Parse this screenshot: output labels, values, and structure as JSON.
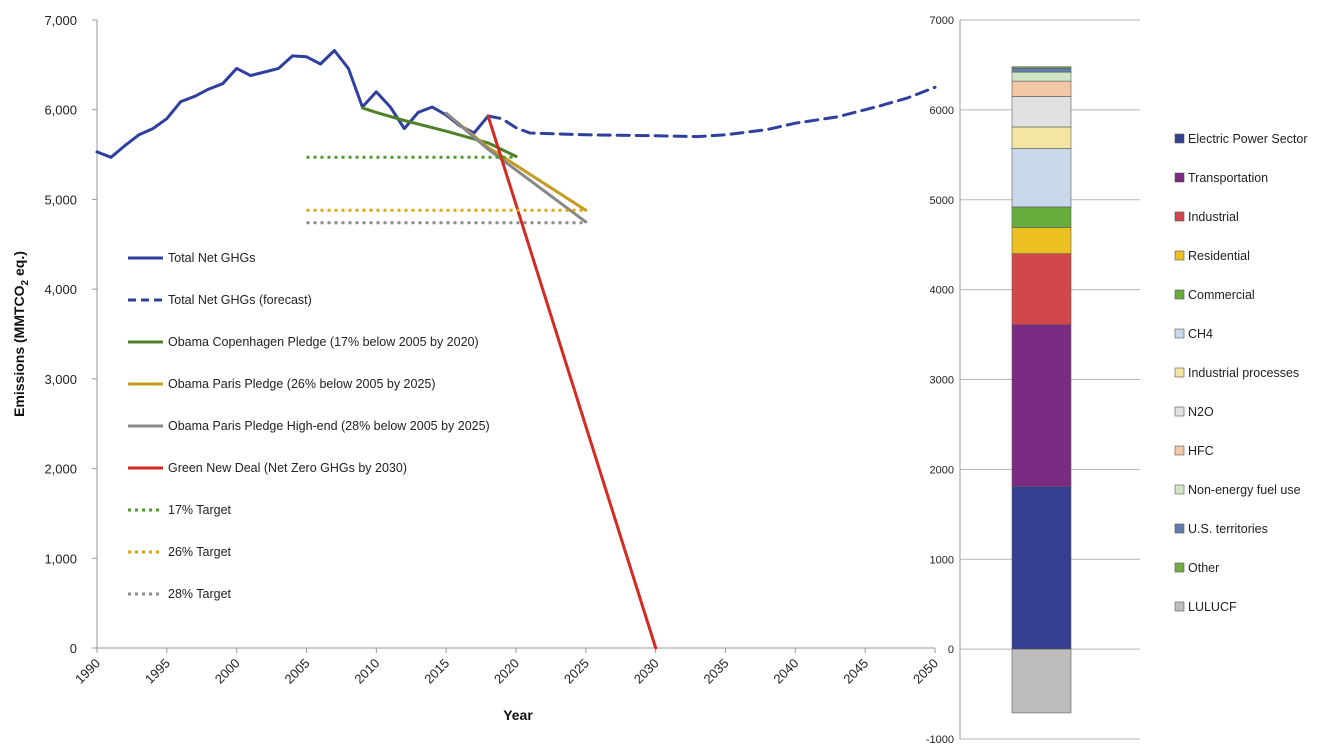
{
  "chart_data": [
    {
      "type": "line",
      "xlabel": "Year",
      "ylabel": "Emissions (MMTCO",
      "ylabel_sub": "2",
      "ylabel_tail": " eq.)",
      "xlim": [
        1990,
        2050
      ],
      "ylim": [
        0,
        7000
      ],
      "xticks": [
        {
          "value": 1990,
          "label": "1990"
        },
        {
          "value": 1995,
          "label": "1995"
        },
        {
          "value": 2000,
          "label": "2000"
        },
        {
          "value": 2005,
          "label": "2005"
        },
        {
          "value": 2010,
          "label": "2010"
        },
        {
          "value": 2015,
          "label": "2015"
        },
        {
          "value": 2020,
          "label": "2020"
        },
        {
          "value": 2025,
          "label": "2025"
        },
        {
          "value": 2030,
          "label": "2030"
        },
        {
          "value": 2035,
          "label": "2035"
        },
        {
          "value": 2040,
          "label": "2040"
        },
        {
          "value": 2045,
          "label": "2045"
        },
        {
          "value": 2050,
          "label": "2050"
        }
      ],
      "yticks": [
        {
          "value": 0,
          "label": "0"
        },
        {
          "value": 1000,
          "label": "1,000"
        },
        {
          "value": 2000,
          "label": "2,000"
        },
        {
          "value": 3000,
          "label": "3,000"
        },
        {
          "value": 4000,
          "label": "4,000"
        },
        {
          "value": 5000,
          "label": "5,000"
        },
        {
          "value": 6000,
          "label": "6,000"
        },
        {
          "value": 7000,
          "label": "7,000"
        }
      ],
      "legend_position": "left",
      "series": [
        {
          "name": "Total Net GHGs",
          "color": "#2e3f9e",
          "dash": "solid",
          "width": 3,
          "points": [
            [
              1990,
              5530
            ],
            [
              1991,
              5470
            ],
            [
              1992,
              5600
            ],
            [
              1993,
              5720
            ],
            [
              1994,
              5790
            ],
            [
              1995,
              5900
            ],
            [
              1996,
              6090
            ],
            [
              1997,
              6150
            ],
            [
              1998,
              6230
            ],
            [
              1999,
              6290
            ],
            [
              2000,
              6460
            ],
            [
              2001,
              6380
            ],
            [
              2002,
              6420
            ],
            [
              2003,
              6460
            ],
            [
              2004,
              6600
            ],
            [
              2005,
              6590
            ],
            [
              2006,
              6510
            ],
            [
              2007,
              6660
            ],
            [
              2008,
              6460
            ],
            [
              2009,
              6030
            ],
            [
              2010,
              6200
            ],
            [
              2011,
              6030
            ],
            [
              2012,
              5790
            ],
            [
              2013,
              5970
            ],
            [
              2014,
              6030
            ],
            [
              2015,
              5940
            ],
            [
              2016,
              5820
            ],
            [
              2017,
              5740
            ],
            [
              2018,
              5930
            ]
          ]
        },
        {
          "name": "Total Net GHGs (forecast)",
          "color": "#2e3f9e",
          "dash": "dashed",
          "width": 3,
          "points": [
            [
              2018,
              5930
            ],
            [
              2019,
              5900
            ],
            [
              2020,
              5800
            ],
            [
              2021,
              5740
            ],
            [
              2025,
              5720
            ],
            [
              2030,
              5710
            ],
            [
              2033,
              5700
            ],
            [
              2035,
              5720
            ],
            [
              2038,
              5780
            ],
            [
              2040,
              5850
            ],
            [
              2043,
              5920
            ],
            [
              2046,
              6040
            ],
            [
              2048,
              6130
            ],
            [
              2050,
              6250
            ]
          ]
        },
        {
          "name": "Obama Copenhagen Pledge (17% below 2005 by 2020)",
          "color": "#4e7f2a",
          "dash": "solid",
          "width": 3,
          "points": [
            [
              2009,
              6020
            ],
            [
              2010,
              5970
            ],
            [
              2012,
              5880
            ],
            [
              2015,
              5760
            ],
            [
              2018,
              5630
            ],
            [
              2020,
              5480
            ]
          ]
        },
        {
          "name": "Obama Paris Pledge (26% below 2005 by 2025)",
          "color": "#c59a1f",
          "dash": "solid",
          "width": 3,
          "points": [
            [
              2015,
              5960
            ],
            [
              2018,
              5580
            ],
            [
              2025,
              4880
            ]
          ]
        },
        {
          "name": "Obama Paris Pledge High-end (28% below 2005 by 2025)",
          "color": "#888888",
          "dash": "solid",
          "width": 3,
          "points": [
            [
              2015,
              5960
            ],
            [
              2018,
              5560
            ],
            [
              2025,
              4750
            ]
          ]
        },
        {
          "name": "Green New Deal (Net Zero GHGs by 2030)",
          "color": "#d42a22",
          "dash": "solid",
          "width": 3,
          "points": [
            [
              2018,
              5930
            ],
            [
              2030,
              0
            ]
          ]
        },
        {
          "name": "17% Target",
          "color": "#4e9a2a",
          "dash": "dotted",
          "width": 3,
          "points": [
            [
              2005,
              5470
            ],
            [
              2020,
              5470
            ]
          ]
        },
        {
          "name": "26% Target",
          "color": "#d9a50f",
          "dash": "dotted",
          "width": 3,
          "points": [
            [
              2005,
              4880
            ],
            [
              2025,
              4880
            ]
          ]
        },
        {
          "name": "28% Target",
          "color": "#8c8c8c",
          "dash": "dotted",
          "width": 3,
          "points": [
            [
              2005,
              4740
            ],
            [
              2025,
              4740
            ]
          ]
        }
      ]
    },
    {
      "type": "bar",
      "stacked": true,
      "ylim": [
        -1000,
        7000
      ],
      "yticks": [
        {
          "value": -1000,
          "label": "-1000"
        },
        {
          "value": 0,
          "label": "0"
        },
        {
          "value": 1000,
          "label": "1000"
        },
        {
          "value": 2000,
          "label": "2000"
        },
        {
          "value": 3000,
          "label": "3000"
        },
        {
          "value": 4000,
          "label": "4000"
        },
        {
          "value": 5000,
          "label": "5000"
        },
        {
          "value": 6000,
          "label": "6000"
        },
        {
          "value": 7000,
          "label": "7000"
        }
      ],
      "legend_position": "right",
      "segments": [
        {
          "name": "Electric Power Sector",
          "color": "#343f8f",
          "value": 1810
        },
        {
          "name": "Transportation",
          "color": "#7a2c82",
          "value": 1800
        },
        {
          "name": "Industrial",
          "color": "#d2474a",
          "value": 790
        },
        {
          "name": "Residential",
          "color": "#ecc021",
          "value": 290
        },
        {
          "name": "Commercial",
          "color": "#67ad3d",
          "value": 230
        },
        {
          "name": "CH4",
          "color": "#c9d9ec",
          "value": 650
        },
        {
          "name": "Industrial processes",
          "color": "#f5e5a2",
          "value": 240
        },
        {
          "name": "N2O",
          "color": "#e1e1e1",
          "value": 340
        },
        {
          "name": "HFC",
          "color": "#f2c7a6",
          "value": 170
        },
        {
          "name": "Non-energy fuel use",
          "color": "#cfe6c5",
          "value": 100
        },
        {
          "name": "U.S. territories",
          "color": "#5f7fa8",
          "value": 45
        },
        {
          "name": "Other",
          "color": "#6fae44",
          "value": 15
        },
        {
          "name": "LULUCF",
          "color": "#bdbdbd",
          "value": -710
        }
      ]
    }
  ]
}
